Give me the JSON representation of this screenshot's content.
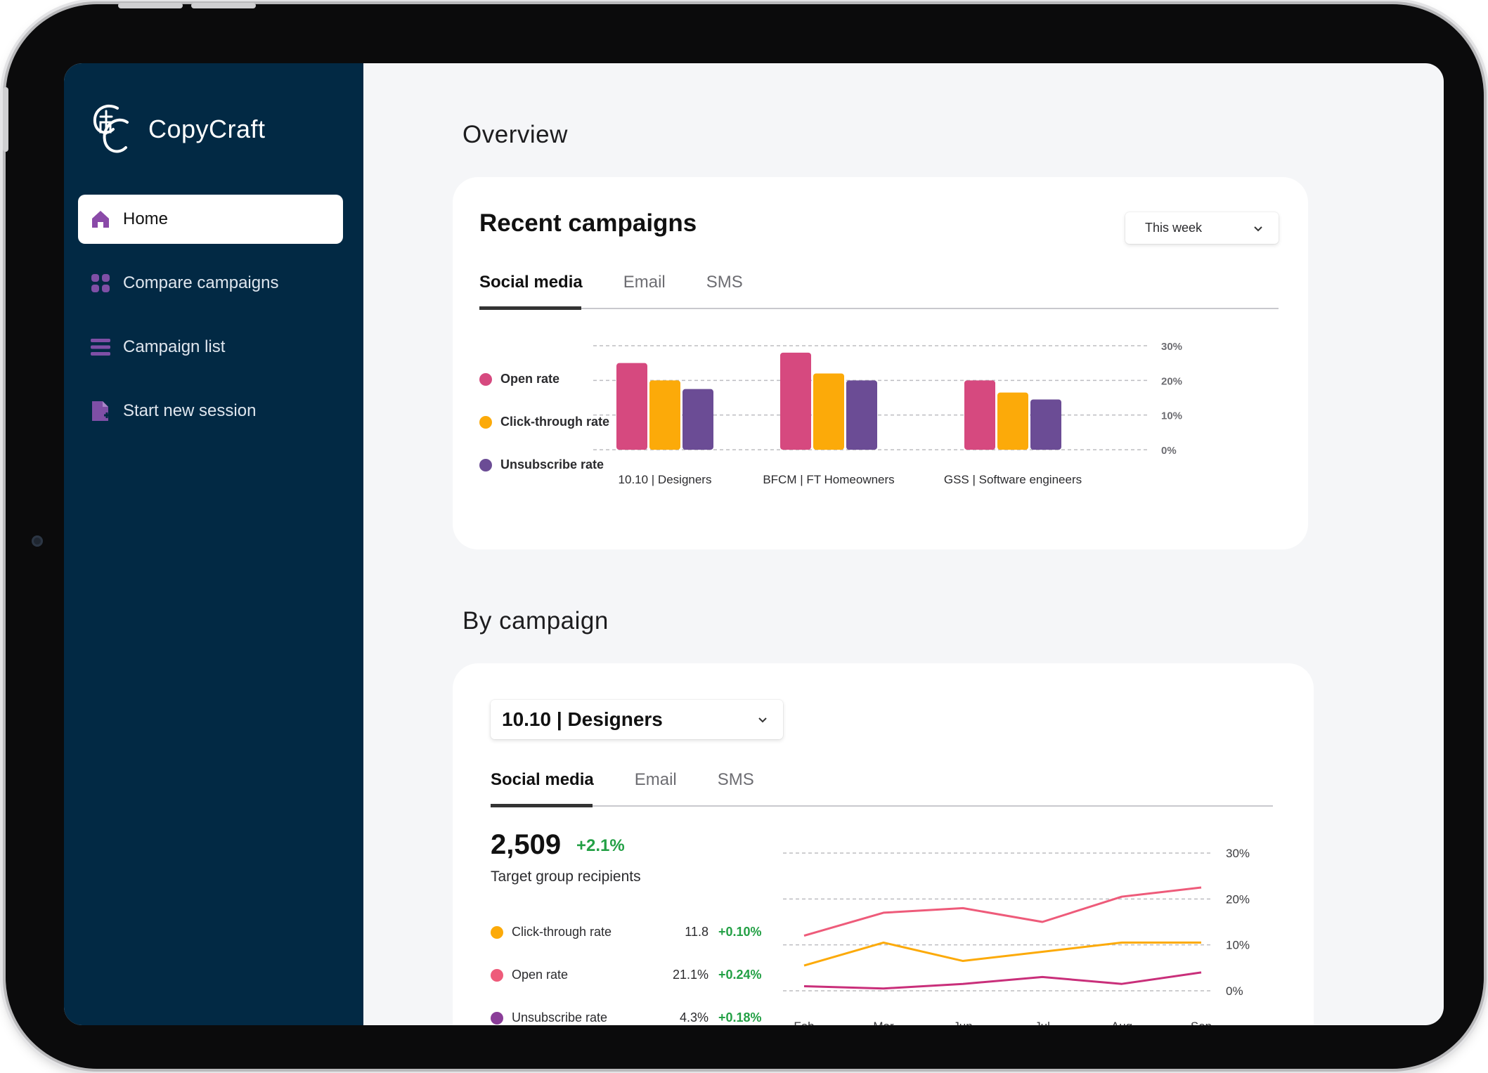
{
  "app": {
    "name": "CopyCraft"
  },
  "colors": {
    "sidebar": "#022944",
    "open": "#d6497f",
    "click": "#fcaa09",
    "unsub": "#6b4c95",
    "accent_icon": "#7f4fa6"
  },
  "sidebar": {
    "items": [
      {
        "label": "Home",
        "icon": "home-icon",
        "active": true
      },
      {
        "label": "Compare campaigns",
        "icon": "grid-icon",
        "active": false
      },
      {
        "label": "Campaign list",
        "icon": "list-icon",
        "active": false
      },
      {
        "label": "Start new session",
        "icon": "new-document-icon",
        "active": false
      }
    ]
  },
  "overview": {
    "section_title": "Overview",
    "card_title": "Recent campaigns",
    "period_select": "This week",
    "tabs": [
      "Social media",
      "Email",
      "SMS"
    ],
    "active_tab": "Social media"
  },
  "by_campaign": {
    "section_title": "By campaign",
    "campaign_select": "10.10 | Designers",
    "tabs": [
      "Social media",
      "Email",
      "SMS"
    ],
    "active_tab": "Social media",
    "recipients_value": "2,509",
    "recipients_delta": "+2.1%",
    "recipients_label": "Target group recipients",
    "metrics": [
      {
        "name": "Click-through rate",
        "value": "11.8",
        "delta": "+0.10%",
        "color": "#fcaa09"
      },
      {
        "name": "Open rate",
        "value": "21.1%",
        "delta": "+0.24%",
        "color": "#ee5b7a"
      },
      {
        "name": "Unsubscribe rate",
        "value": "4.3%",
        "delta": "+0.18%",
        "color": "#8a3d98"
      }
    ]
  },
  "chart_data": [
    {
      "type": "bar",
      "categories": [
        "10.10 | Designers",
        "BFCM | FT Homeowners",
        "GSS | Software engineers"
      ],
      "series": [
        {
          "name": "Open rate",
          "values": [
            25,
            28,
            20
          ]
        },
        {
          "name": "Click-through rate",
          "values": [
            20,
            22,
            16.5
          ]
        },
        {
          "name": "Unsubscribe rate",
          "values": [
            17.5,
            20,
            14.5
          ]
        }
      ],
      "yticks": [
        "30%",
        "20%",
        "10%",
        "0%"
      ],
      "ylim": [
        0,
        30
      ],
      "grid": true,
      "legend": "left"
    },
    {
      "type": "line",
      "x": [
        "Feb",
        "Mar",
        "Jun",
        "Jul",
        "Aug",
        "Sep"
      ],
      "series": [
        {
          "values": [
            12,
            17,
            18,
            15,
            20.5,
            22.5
          ]
        },
        {
          "values": [
            5.5,
            10.5,
            6.5,
            8.5,
            10.5,
            10.5
          ]
        },
        {
          "values": [
            1,
            0.5,
            1.5,
            3,
            1.5,
            4
          ]
        }
      ],
      "yticks": [
        "30%",
        "20%",
        "10%",
        "0%"
      ],
      "ylim": [
        0,
        30
      ],
      "grid": true
    }
  ]
}
